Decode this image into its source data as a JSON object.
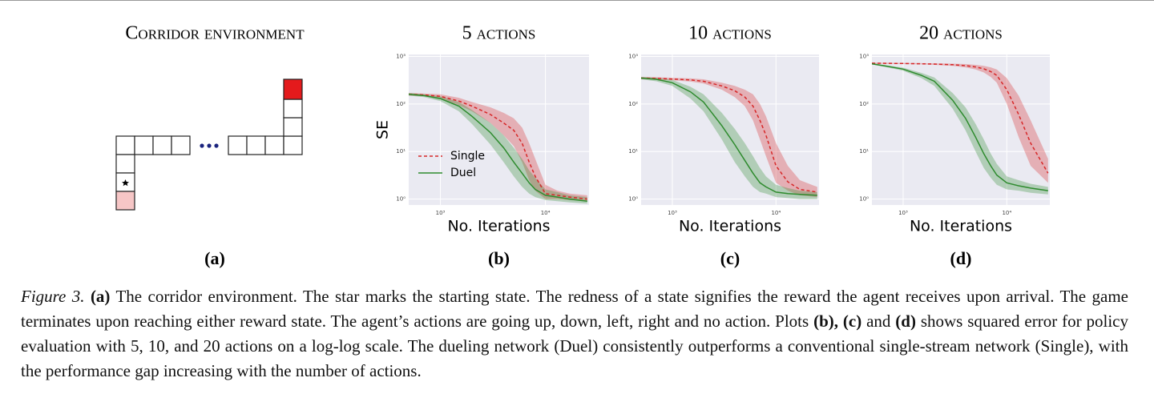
{
  "diagram": {
    "title": "Corridor environment",
    "label": "(a)"
  },
  "chart_data": [
    {
      "type": "line",
      "title": "5 actions",
      "label": "(b)",
      "xlabel": "No. Iterations",
      "ylabel": "SE",
      "xscale": "log",
      "yscale": "log",
      "grid": true,
      "legend": "lower left",
      "xlim": [
        500,
        26000
      ],
      "ylim": [
        0.75,
        1100
      ],
      "xticks": [
        {
          "value": 1000,
          "label": "10³"
        },
        {
          "value": 10000,
          "label": "10⁴"
        }
      ],
      "yticks": [
        {
          "value": 1,
          "label": "10⁰"
        },
        {
          "value": 10,
          "label": "10¹"
        },
        {
          "value": 100,
          "label": "10²"
        },
        {
          "value": 1000,
          "label": "10³"
        }
      ],
      "x": [
        500,
        700,
        1000,
        1500,
        2000,
        3000,
        4000,
        5000,
        6000,
        7000,
        8000,
        10000,
        13000,
        17000,
        25000
      ],
      "series": [
        {
          "name": "Single",
          "color": "#d62728",
          "linestyle": "dashed",
          "values": [
            160,
            155,
            145,
            115,
            90,
            60,
            40,
            28,
            15,
            6,
            3,
            1.3,
            1.2,
            1.1,
            1.0
          ],
          "lower": [
            150,
            145,
            130,
            95,
            70,
            40,
            22,
            13,
            6,
            2.5,
            1.5,
            1.0,
            1.0,
            0.95,
            0.9
          ],
          "upper": [
            170,
            165,
            160,
            135,
            110,
            85,
            65,
            50,
            32,
            15,
            7,
            2,
            1.5,
            1.3,
            1.2
          ]
        },
        {
          "name": "Duel",
          "color": "#2e8b2e",
          "linestyle": "solid",
          "values": [
            160,
            150,
            130,
            90,
            55,
            25,
            12,
            6,
            3.5,
            2.2,
            1.6,
            1.2,
            1.1,
            1.0,
            0.9
          ],
          "lower": [
            150,
            140,
            115,
            70,
            38,
            14,
            6,
            3,
            1.8,
            1.3,
            1.1,
            0.95,
            0.9,
            0.85,
            0.8
          ],
          "upper": [
            170,
            160,
            145,
            110,
            75,
            40,
            22,
            12,
            7,
            4,
            2.8,
            1.6,
            1.4,
            1.2,
            1.1
          ]
        }
      ]
    },
    {
      "type": "line",
      "title": "10 actions",
      "label": "(c)",
      "xlabel": "No. Iterations",
      "xscale": "log",
      "yscale": "log",
      "grid": true,
      "xlim": [
        500,
        26000
      ],
      "ylim": [
        0.75,
        1100
      ],
      "xticks": [
        {
          "value": 1000,
          "label": "10³"
        },
        {
          "value": 10000,
          "label": "10⁴"
        }
      ],
      "yticks": [
        {
          "value": 1,
          "label": "10⁰"
        },
        {
          "value": 10,
          "label": "10¹"
        },
        {
          "value": 100,
          "label": "10²"
        },
        {
          "value": 1000,
          "label": "10³"
        }
      ],
      "x": [
        500,
        700,
        1000,
        1500,
        2000,
        3000,
        4000,
        5000,
        6000,
        7000,
        8000,
        10000,
        13000,
        17000,
        25000
      ],
      "series": [
        {
          "name": "Single",
          "color": "#d62728",
          "linestyle": "dashed",
          "values": [
            350,
            345,
            335,
            320,
            300,
            240,
            190,
            140,
            90,
            45,
            22,
            5,
            2.3,
            1.6,
            1.4
          ],
          "lower": [
            330,
            325,
            315,
            295,
            270,
            200,
            140,
            90,
            45,
            18,
            8,
            2.2,
            1.5,
            1.2,
            1.1
          ],
          "upper": [
            370,
            365,
            355,
            345,
            330,
            280,
            240,
            200,
            160,
            100,
            55,
            15,
            5,
            2.5,
            1.8
          ]
        },
        {
          "name": "Duel",
          "color": "#2e8b2e",
          "linestyle": "solid",
          "values": [
            350,
            330,
            280,
            180,
            110,
            35,
            14,
            6.5,
            3.5,
            2.2,
            1.8,
            1.4,
            1.3,
            1.25,
            1.2
          ],
          "lower": [
            330,
            300,
            240,
            130,
            70,
            18,
            6,
            3,
            1.8,
            1.4,
            1.3,
            1.1,
            1.05,
            1.0,
            1.0
          ],
          "upper": [
            370,
            355,
            320,
            230,
            160,
            65,
            30,
            15,
            8,
            4.5,
            3,
            2,
            1.7,
            1.5,
            1.4
          ]
        }
      ]
    },
    {
      "type": "line",
      "title": "20 actions",
      "label": "(d)",
      "xlabel": "No. Iterations",
      "xscale": "log",
      "yscale": "log",
      "grid": true,
      "xlim": [
        500,
        26000
      ],
      "ylim": [
        0.75,
        1100
      ],
      "xticks": [
        {
          "value": 1000,
          "label": "10³"
        },
        {
          "value": 10000,
          "label": "10⁴"
        }
      ],
      "yticks": [
        {
          "value": 1,
          "label": "10⁰"
        },
        {
          "value": 10,
          "label": "10¹"
        },
        {
          "value": 100,
          "label": "10²"
        },
        {
          "value": 1000,
          "label": "10³"
        }
      ],
      "x": [
        500,
        700,
        1000,
        1500,
        2000,
        3000,
        4000,
        5000,
        6000,
        7000,
        8000,
        10000,
        13000,
        17000,
        25000
      ],
      "series": [
        {
          "name": "Single",
          "color": "#d62728",
          "linestyle": "dashed",
          "values": [
            720,
            715,
            710,
            700,
            690,
            670,
            640,
            600,
            550,
            480,
            400,
            200,
            60,
            15,
            3.5
          ],
          "lower": [
            700,
            695,
            690,
            680,
            665,
            635,
            590,
            530,
            460,
            370,
            280,
            100,
            20,
            5,
            2.2
          ],
          "upper": [
            740,
            735,
            730,
            720,
            715,
            705,
            690,
            665,
            635,
            590,
            530,
            350,
            150,
            45,
            7
          ]
        },
        {
          "name": "Duel",
          "color": "#2e8b2e",
          "linestyle": "solid",
          "values": [
            700,
            620,
            540,
            400,
            300,
            120,
            50,
            20,
            9,
            5,
            3.2,
            2.2,
            1.9,
            1.7,
            1.5
          ],
          "lower": [
            680,
            590,
            500,
            350,
            240,
            80,
            28,
            10,
            4.5,
            2.8,
            2,
            1.6,
            1.5,
            1.35,
            1.25
          ],
          "upper": [
            720,
            650,
            580,
            450,
            360,
            170,
            85,
            38,
            18,
            9,
            5.5,
            3,
            2.5,
            2.1,
            1.8
          ]
        }
      ]
    }
  ],
  "caption": {
    "label": "Figure 3.",
    "runs": [
      "(a)",
      " The corridor environment. The star marks the starting state. The redness of a state signifies the reward the agent receives upon arrival. The game terminates upon reaching either reward state. The agent’s actions are going up, down, left, right and no action. Plots ",
      "(b), (c)",
      " and ",
      "(d)",
      " shows squared error for policy evaluation with 5, 10, and 20 actions on a log-log scale. The dueling network (Duel) consistently outperforms a conventional single-stream network (Single), with the performance gap increasing with the number of actions."
    ]
  }
}
